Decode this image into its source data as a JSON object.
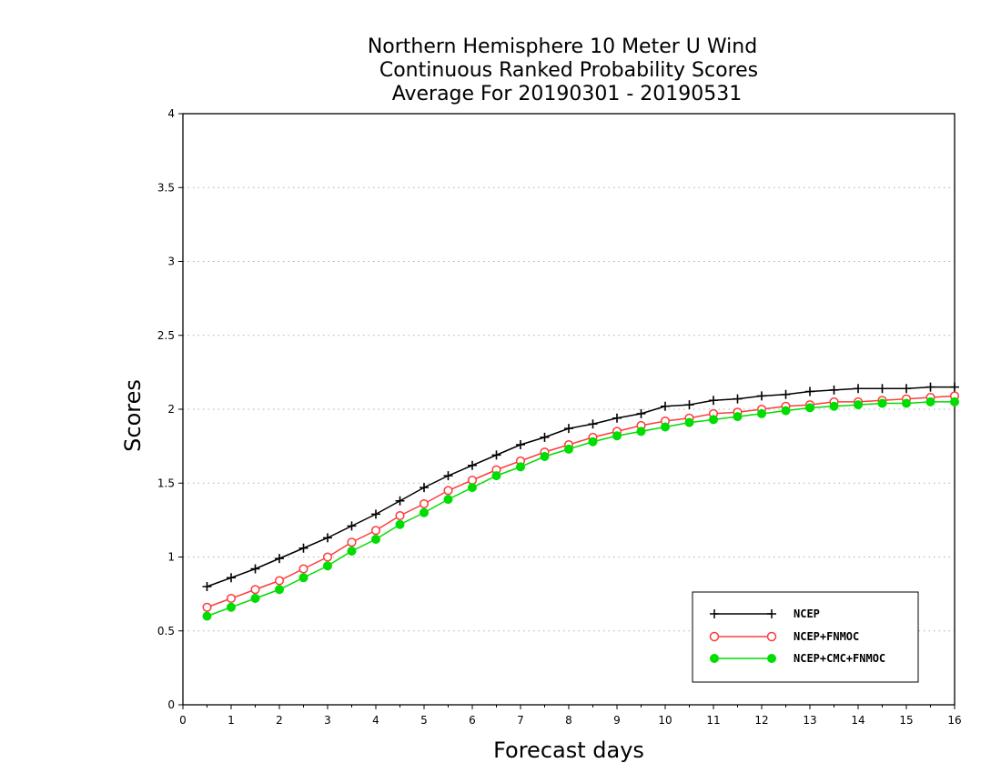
{
  "chart_data": {
    "type": "line",
    "title": [
      "Northern Hemisphere 10 Meter U Wind",
      "Continuous Ranked Probability Scores",
      "Average For 20190301 - 20190531"
    ],
    "xlabel": "Forecast days",
    "ylabel": "Scores",
    "xlim": [
      0,
      16
    ],
    "ylim": [
      0,
      4
    ],
    "x_ticks": [
      "0",
      "1",
      "2",
      "3",
      "4",
      "5",
      "6",
      "7",
      "8",
      "9",
      "10",
      "11",
      "12",
      "13",
      "14",
      "15",
      "16"
    ],
    "y_ticks": [
      "0",
      "0.5",
      "1",
      "1.5",
      "2",
      "2.5",
      "3",
      "3.5",
      "4"
    ],
    "grid": "horizontal dotted",
    "legend_position": "bottom-right",
    "x": [
      0.5,
      1,
      1.5,
      2,
      2.5,
      3,
      3.5,
      4,
      4.5,
      5,
      5.5,
      6,
      6.5,
      7,
      7.5,
      8,
      8.5,
      9,
      9.5,
      10,
      10.5,
      11,
      11.5,
      12,
      12.5,
      13,
      13.5,
      14,
      14.5,
      15,
      15.5,
      16
    ],
    "series": [
      {
        "name": "NCEP",
        "color": "#000000",
        "marker": "plus",
        "values": [
          0.8,
          0.86,
          0.92,
          0.99,
          1.06,
          1.13,
          1.21,
          1.29,
          1.38,
          1.47,
          1.55,
          1.62,
          1.69,
          1.76,
          1.81,
          1.87,
          1.9,
          1.94,
          1.97,
          2.02,
          2.03,
          2.06,
          2.07,
          2.09,
          2.1,
          2.12,
          2.13,
          2.14,
          2.14,
          2.14,
          2.15,
          2.15
        ]
      },
      {
        "name": "NCEP+FNMOC",
        "color": "#ff3b3b",
        "marker": "open-circle",
        "values": [
          0.66,
          0.72,
          0.78,
          0.84,
          0.92,
          1.0,
          1.1,
          1.18,
          1.28,
          1.36,
          1.45,
          1.52,
          1.59,
          1.65,
          1.71,
          1.76,
          1.81,
          1.85,
          1.89,
          1.92,
          1.94,
          1.97,
          1.98,
          2.0,
          2.02,
          2.03,
          2.05,
          2.05,
          2.06,
          2.07,
          2.08,
          2.09
        ]
      },
      {
        "name": "NCEP+CMC+FNMOC",
        "color": "#00dd00",
        "marker": "filled-circle",
        "values": [
          0.6,
          0.66,
          0.72,
          0.78,
          0.86,
          0.94,
          1.04,
          1.12,
          1.22,
          1.3,
          1.39,
          1.47,
          1.55,
          1.61,
          1.68,
          1.73,
          1.78,
          1.82,
          1.85,
          1.88,
          1.91,
          1.93,
          1.95,
          1.97,
          1.99,
          2.01,
          2.02,
          2.03,
          2.04,
          2.04,
          2.05,
          2.05
        ]
      }
    ]
  }
}
